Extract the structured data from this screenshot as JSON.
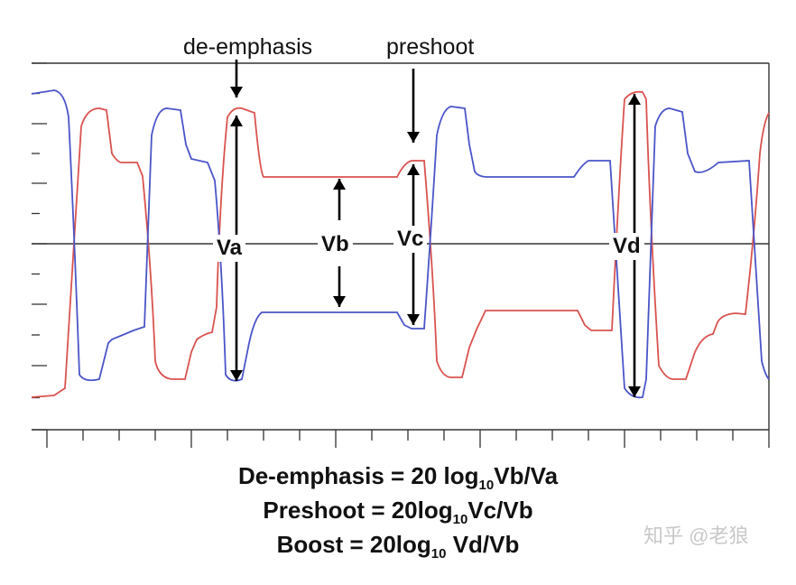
{
  "labels": {
    "deemphasis": "de-emphasis",
    "preshoot": "preshoot",
    "va": "Va",
    "vb": "Vb",
    "vc": "Vc",
    "vd": "Vd"
  },
  "formulas": [
    {
      "lead": "De-emphasis = 20 log",
      "sub": "10",
      "tail": "Vb/Va"
    },
    {
      "lead": "Preshoot = 20log",
      "sub": "10",
      "tail": "Vc/Vb"
    },
    {
      "lead": "Boost = 20log",
      "sub": "10",
      "tail": " Vd/Vb"
    }
  ],
  "watermark": "知乎 @老狼",
  "colors": {
    "red_trace": "#d9534f",
    "blue_trace": "#4a55c8",
    "axis": "#333333",
    "arrow": "#000000"
  }
}
